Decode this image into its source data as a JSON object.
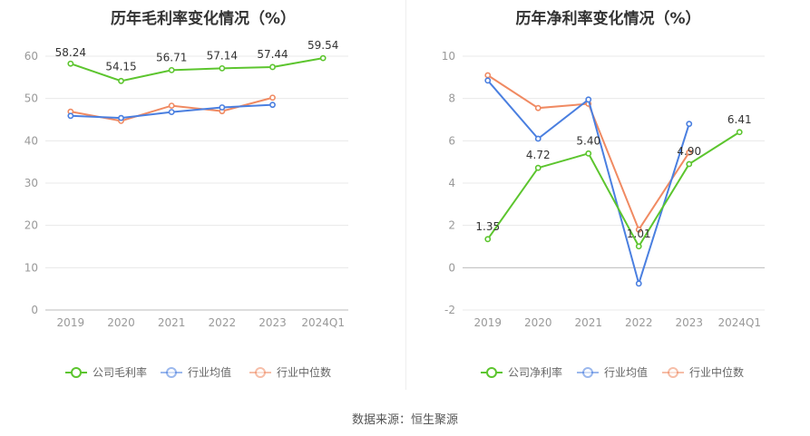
{
  "source_text": "数据来源：恒生聚源",
  "chart_data": [
    {
      "type": "line",
      "title": "历年毛利率变化情况（%）",
      "categories": [
        "2019",
        "2020",
        "2021",
        "2022",
        "2023",
        "2024Q1"
      ],
      "ylim": [
        0,
        60
      ],
      "yticks": [
        0,
        10,
        20,
        30,
        40,
        50,
        60
      ],
      "grid": true,
      "legend": "bottom",
      "series": [
        {
          "name": "公司毛利率",
          "color": "#5cc52e",
          "values": [
            58.24,
            54.15,
            56.71,
            57.14,
            57.44,
            59.54
          ],
          "labels": [
            "58.24",
            "54.15",
            "56.71",
            "57.14",
            "57.44",
            "59.54"
          ]
        },
        {
          "name": "行业均值",
          "color": "#4a7fe0",
          "values": [
            45.9,
            45.4,
            46.8,
            47.9,
            48.5,
            null
          ]
        },
        {
          "name": "行业中位数",
          "color": "#f08a62",
          "values": [
            46.9,
            44.7,
            48.3,
            47.0,
            50.2,
            null
          ]
        }
      ]
    },
    {
      "type": "line",
      "title": "历年净利率变化情况（%）",
      "categories": [
        "2019",
        "2020",
        "2021",
        "2022",
        "2023",
        "2024Q1"
      ],
      "ylim": [
        -2,
        10
      ],
      "yticks": [
        -2,
        0,
        2,
        4,
        6,
        8,
        10
      ],
      "grid": true,
      "legend": "bottom",
      "series": [
        {
          "name": "公司净利率",
          "color": "#5cc52e",
          "values": [
            1.35,
            4.72,
            5.4,
            1.01,
            4.9,
            6.41
          ],
          "labels": [
            "1.35",
            "4.72",
            "5.40",
            "1.01",
            "4.90",
            "6.41"
          ]
        },
        {
          "name": "行业均值",
          "color": "#4a7fe0",
          "values": [
            8.85,
            6.1,
            7.95,
            -0.75,
            6.8,
            null
          ]
        },
        {
          "name": "行业中位数",
          "color": "#f08a62",
          "values": [
            9.1,
            7.55,
            7.75,
            1.8,
            5.45,
            null
          ]
        }
      ]
    }
  ]
}
